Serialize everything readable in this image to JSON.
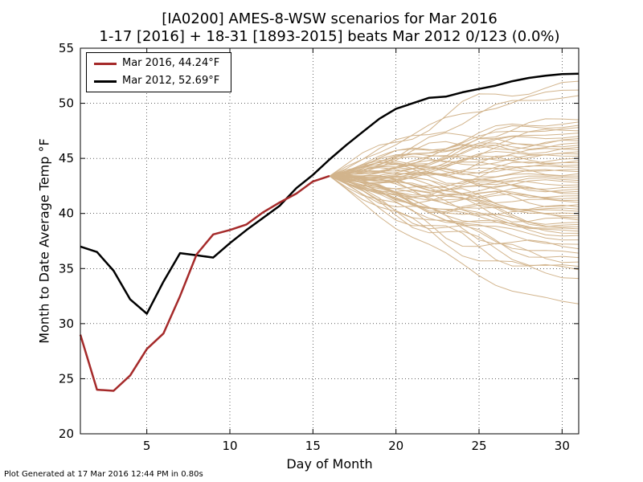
{
  "title": {
    "line1": "[IA0200] AMES-8-WSW scenarios for Mar 2016",
    "line2": "1-17 [2016] + 18-31 [1893-2015] beats Mar 2012 0/123 (0.0%)"
  },
  "footer": "Plot Generated at 17 Mar 2016 12:44 PM in 0.80s",
  "colors": {
    "current": "#a52a2a",
    "record": "#000000",
    "scenario": "#d2b48c",
    "grid": "#000000"
  },
  "chart_data": {
    "type": "line",
    "xlabel": "Day of Month",
    "ylabel": "Month to Date Average Temp °F",
    "xlim": [
      1,
      31
    ],
    "ylim": [
      20,
      55
    ],
    "xticks": [
      5,
      10,
      15,
      20,
      25,
      30
    ],
    "yticks": [
      20,
      25,
      30,
      35,
      40,
      45,
      50,
      55
    ],
    "grid": true,
    "legend": "top-left",
    "series": [
      {
        "name": "Mar 2016, 44.24°F",
        "x": [
          1,
          2,
          3,
          4,
          5,
          6,
          7,
          8,
          9,
          10,
          11,
          12,
          13,
          14,
          15,
          16
        ],
        "y": [
          29.0,
          24.0,
          23.9,
          25.3,
          27.7,
          29.1,
          32.5,
          36.3,
          38.1,
          38.5,
          39.0,
          40.1,
          41.0,
          41.8,
          42.9,
          43.4
        ]
      },
      {
        "name": "Mar 2012, 52.69°F",
        "x": [
          1,
          2,
          3,
          4,
          5,
          6,
          7,
          8,
          9,
          10,
          11,
          12,
          13,
          14,
          15,
          16,
          17,
          18,
          19,
          20,
          21,
          22,
          23,
          24,
          25,
          26,
          27,
          28,
          29,
          30,
          31
        ],
        "y": [
          37.0,
          36.5,
          34.8,
          32.2,
          30.9,
          33.8,
          36.4,
          36.2,
          36.0,
          37.3,
          38.5,
          39.6,
          40.7,
          42.3,
          43.5,
          44.9,
          46.2,
          47.4,
          48.6,
          49.5,
          50.0,
          50.5,
          50.6,
          51.0,
          51.3,
          51.6,
          52.0,
          52.3,
          52.5,
          52.65,
          52.69
        ]
      }
    ],
    "scenarios": {
      "count": 123,
      "start_day": 16,
      "start_value": 43.4,
      "end_day": 31,
      "end_values": [
        52.0,
        51.2,
        50.7,
        48.5,
        48.3,
        48.0,
        47.8,
        47.5,
        47.3,
        47.0,
        46.8,
        46.6,
        46.4,
        46.2,
        46.0,
        45.8,
        45.6,
        45.4,
        45.2,
        45.0,
        44.8,
        44.6,
        44.4,
        44.2,
        44.0,
        43.8,
        43.6,
        43.4,
        43.2,
        43.0,
        42.8,
        42.6,
        42.4,
        42.2,
        42.0,
        41.8,
        41.6,
        41.4,
        41.2,
        41.0,
        40.8,
        40.6,
        40.4,
        40.2,
        40.0,
        39.8,
        39.6,
        39.4,
        39.2,
        39.0,
        38.8,
        38.6,
        38.4,
        38.2,
        38.0,
        37.6,
        37.2,
        36.8,
        36.4,
        36.0,
        35.6,
        35.2,
        34.9,
        34.1,
        31.8
      ]
    }
  }
}
